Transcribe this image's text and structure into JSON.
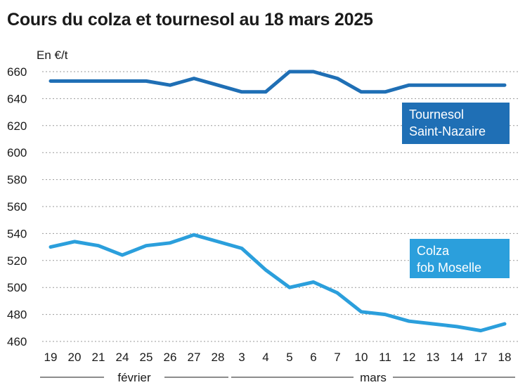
{
  "title": "Cours du colza et tournesol au 18 mars 2025",
  "chart_data": {
    "type": "line",
    "title": "Cours du colza et tournesol au 18 mars 2025",
    "ylabel": "En €/t",
    "xlabel": "",
    "ylim": [
      460,
      660
    ],
    "yticks": [
      660,
      640,
      620,
      600,
      580,
      560,
      540,
      520,
      500,
      480,
      460
    ],
    "grid": true,
    "categories": [
      "19",
      "20",
      "21",
      "24",
      "25",
      "26",
      "27",
      "28",
      "3",
      "4",
      "5",
      "6",
      "7",
      "10",
      "11",
      "12",
      "13",
      "14",
      "17",
      "18"
    ],
    "months": [
      {
        "label": "février",
        "from": 0,
        "to": 7
      },
      {
        "label": "mars",
        "from": 8,
        "to": 19
      }
    ],
    "series": [
      {
        "name": "Tournesol Saint-Nazaire",
        "legend_lines": [
          "Tournesol",
          "Saint-Nazaire"
        ],
        "color": "#1f6fb5",
        "values": [
          653,
          653,
          653,
          653,
          653,
          650,
          655,
          650,
          645,
          645,
          660,
          660,
          655,
          645,
          645,
          650,
          650,
          650,
          650,
          650
        ]
      },
      {
        "name": "Colza fob Moselle",
        "legend_lines": [
          "Colza",
          "fob Moselle"
        ],
        "color": "#2b9fdc",
        "values": [
          530,
          534,
          531,
          524,
          531,
          533,
          539,
          534,
          529,
          513,
          500,
          504,
          496,
          482,
          480,
          475,
          473,
          471,
          468,
          473
        ]
      }
    ]
  }
}
